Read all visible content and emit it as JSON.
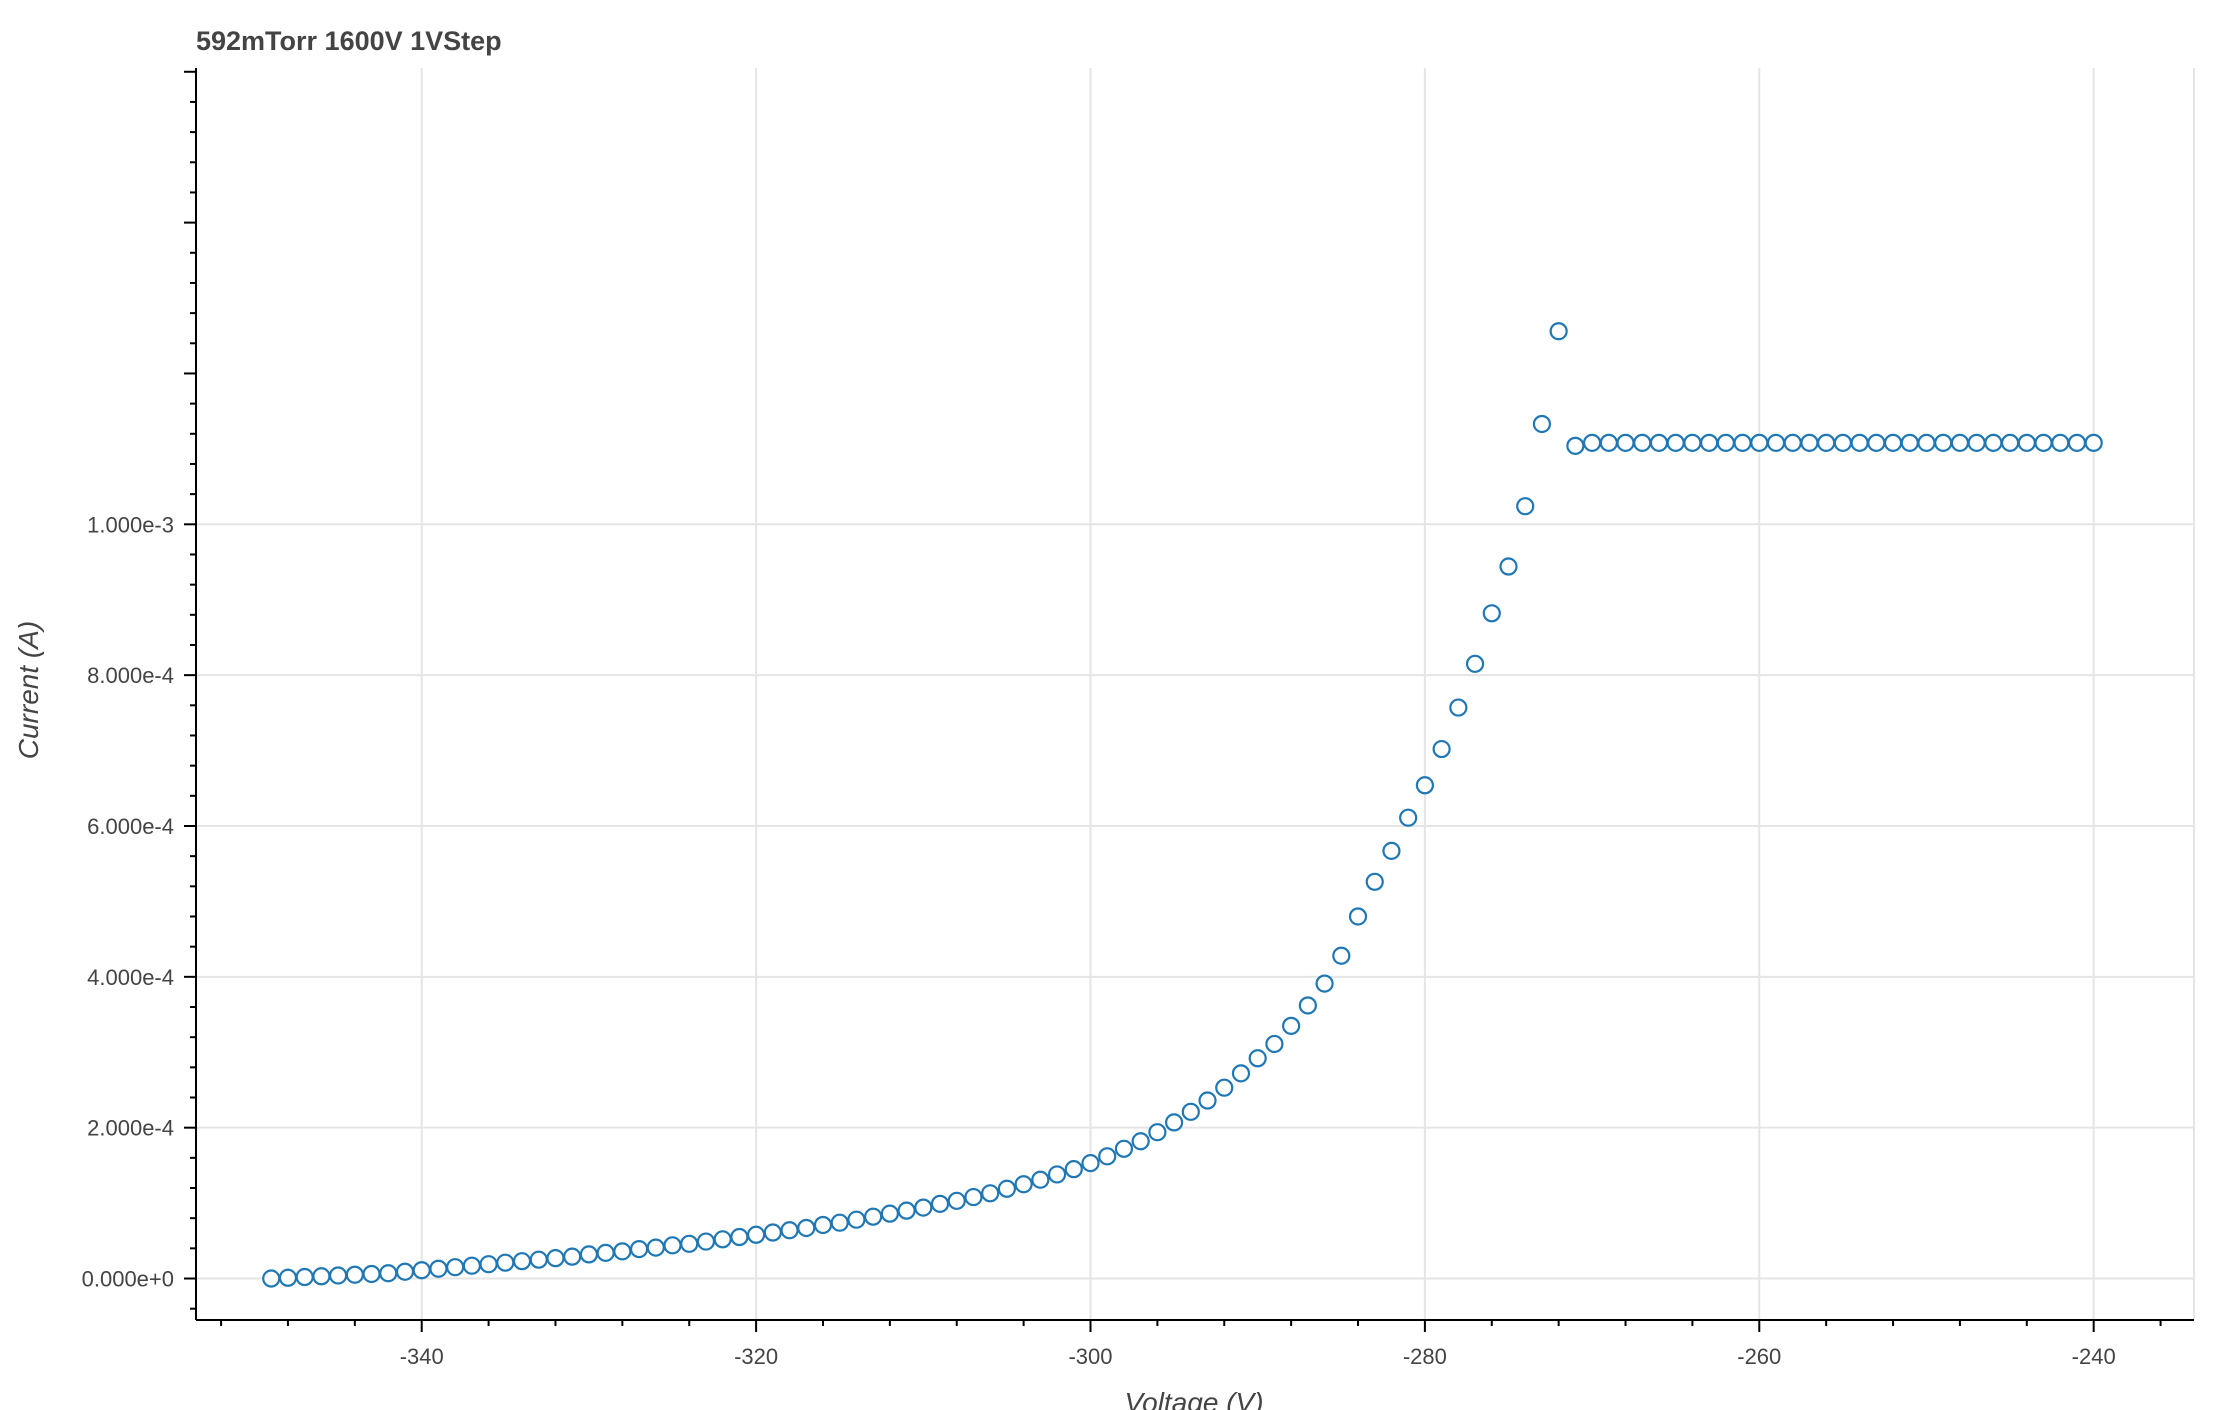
{
  "chart_data": {
    "type": "scatter",
    "title": "592mTorr 1600V 1VStep",
    "xlabel": "Voltage (V)",
    "ylabel": "Current (A)",
    "xlim": [
      -353.5,
      -234.0
    ],
    "ylim": [
      -5.5e-05,
      0.001605
    ],
    "x_ticks": [
      -340,
      -320,
      -300,
      -280,
      -260,
      -240
    ],
    "x_tick_labels": [
      "-340",
      "-320",
      "-300",
      "-280",
      "-260",
      "-240"
    ],
    "y_ticks": [
      0,
      0.0002,
      0.0004,
      0.0006,
      0.0008,
      0.001
    ],
    "y_tick_labels": [
      "0.000e+0",
      "2.000e-4",
      "4.000e-4",
      "6.000e-4",
      "8.000e-4",
      "1.000e-3"
    ],
    "grid": true,
    "legend": "none",
    "marker": "open-circle",
    "colors": {
      "marker_stroke": "#1f77b4",
      "grid": "#e5e5e5",
      "text": "#444444"
    },
    "series": [
      {
        "x": [
          -349,
          -348,
          -347,
          -346,
          -345,
          -344,
          -343,
          -342,
          -341,
          -340,
          -339,
          -338,
          -337,
          -336,
          -335,
          -334,
          -333,
          -332,
          -331,
          -330,
          -329,
          -328,
          -327,
          -326,
          -325,
          -324,
          -323,
          -322,
          -321,
          -320,
          -319,
          -318,
          -317,
          -316,
          -315,
          -314,
          -313,
          -312,
          -311,
          -310,
          -309,
          -308,
          -307,
          -306,
          -305,
          -304,
          -303,
          -302,
          -301,
          -300,
          -299,
          -298,
          -297,
          -296,
          -295,
          -294,
          -293,
          -292,
          -291,
          -290,
          -289,
          -288,
          -287,
          -286,
          -285,
          -284,
          -283,
          -282,
          -281,
          -280,
          -279,
          -278,
          -277,
          -276,
          -275,
          -274,
          -273,
          -272,
          -271,
          -270,
          -269,
          -268,
          -267,
          -266,
          -265,
          -264,
          -263,
          -262,
          -261,
          -260,
          -259,
          -258,
          -257,
          -256,
          -255,
          -254,
          -253,
          -252,
          -251,
          -250,
          -249,
          -248,
          -247,
          -246,
          -245,
          -244,
          -243,
          -242,
          -241,
          -240
        ],
        "y": [
          0.0,
          1e-06,
          2e-06,
          3e-06,
          4e-06,
          5e-06,
          6e-06,
          7e-06,
          9e-06,
          1.1e-05,
          1.3e-05,
          1.5e-05,
          1.7e-05,
          1.9e-05,
          2.1e-05,
          2.3e-05,
          2.5e-05,
          2.7e-05,
          2.9e-05,
          3.2e-05,
          3.4e-05,
          3.6e-05,
          3.9e-05,
          4.1e-05,
          4.4e-05,
          4.6e-05,
          4.9e-05,
          5.2e-05,
          5.5e-05,
          5.8e-05,
          6.1e-05,
          6.4e-05,
          6.7e-05,
          7.1e-05,
          7.4e-05,
          7.8e-05,
          8.2e-05,
          8.6e-05,
          9e-05,
          9.4e-05,
          9.9e-05,
          0.000103,
          0.000108,
          0.000113,
          0.000119,
          0.000125,
          0.000131,
          0.000138,
          0.000145,
          0.000153,
          0.000162,
          0.000172,
          0.000182,
          0.000194,
          0.000207,
          0.000221,
          0.000236,
          0.000253,
          0.000272,
          0.000292,
          0.000311,
          0.000335,
          0.000362,
          0.000391,
          0.000428,
          0.00048,
          0.000526,
          0.000567,
          0.000611,
          0.000654,
          0.000702,
          0.000757,
          0.000815,
          0.000882,
          0.000944,
          0.001024,
          0.001133,
          0.001256,
          0.001104,
          0.001108,
          0.001108,
          0.001108,
          0.001108,
          0.001108,
          0.001108,
          0.001108,
          0.001108,
          0.001108,
          0.001108,
          0.001108,
          0.001108,
          0.001108,
          0.001108,
          0.001108,
          0.001108,
          0.001108,
          0.001108,
          0.001108,
          0.001108,
          0.001108,
          0.001108,
          0.001108,
          0.001108,
          0.001108,
          0.001108,
          0.001108,
          0.001108,
          0.001108,
          0.001108,
          0.001108
        ]
      }
    ]
  }
}
